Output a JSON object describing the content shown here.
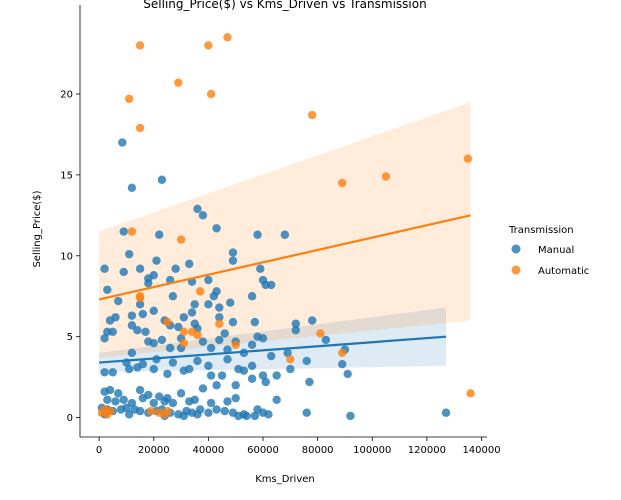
{
  "chart_data": {
    "type": "scatter",
    "title": "Selling_Price($) vs Kms_Driven vs Transmission",
    "xlabel": "Kms_Driven",
    "ylabel": "Selling_Price($)",
    "xlim": [
      -7000,
      142000
    ],
    "ylim": [
      -1.2,
      25.5
    ],
    "xticks": [
      0,
      20000,
      40000,
      60000,
      80000,
      100000,
      120000,
      140000
    ],
    "yticks": [
      0,
      5,
      10,
      15,
      20
    ],
    "grid": false,
    "legend": {
      "title": "Transmission",
      "placement": "right"
    },
    "series": [
      {
        "name": "Manual",
        "color": "#1f77b4",
        "regression": {
          "x": [
            0,
            127000
          ],
          "y": [
            3.4,
            5.0
          ],
          "ci_upper": [
            4.0,
            6.8
          ],
          "ci_lower": [
            2.8,
            3.2
          ]
        },
        "points": [
          [
            8500,
            17.0
          ],
          [
            12000,
            14.2
          ],
          [
            23000,
            14.7
          ],
          [
            36000,
            12.9
          ],
          [
            38000,
            12.5
          ],
          [
            43000,
            11.7
          ],
          [
            9000,
            11.5
          ],
          [
            22000,
            11.3
          ],
          [
            58000,
            11.3
          ],
          [
            68000,
            11.3
          ],
          [
            49000,
            10.2
          ],
          [
            11000,
            10.1
          ],
          [
            21000,
            9.7
          ],
          [
            49000,
            9.7
          ],
          [
            28000,
            9.2
          ],
          [
            33000,
            9.5
          ],
          [
            15000,
            9.2
          ],
          [
            2000,
            9.2
          ],
          [
            9000,
            9.0
          ],
          [
            59000,
            9.2
          ],
          [
            18000,
            8.6
          ],
          [
            20000,
            8.8
          ],
          [
            34000,
            8.4
          ],
          [
            40000,
            8.5
          ],
          [
            60000,
            8.5
          ],
          [
            61000,
            8.2
          ],
          [
            63000,
            8.2
          ],
          [
            3000,
            7.9
          ],
          [
            18000,
            8.3
          ],
          [
            26000,
            8.5
          ],
          [
            43000,
            7.8
          ],
          [
            42000,
            7.5
          ],
          [
            7000,
            7.2
          ],
          [
            27000,
            7.5
          ],
          [
            35000,
            7.0
          ],
          [
            40000,
            7.0
          ],
          [
            48000,
            7.1
          ],
          [
            56000,
            7.5
          ],
          [
            44000,
            6.8
          ],
          [
            15000,
            7.0
          ],
          [
            20000,
            6.6
          ],
          [
            6000,
            6.2
          ],
          [
            12000,
            6.3
          ],
          [
            16000,
            6.4
          ],
          [
            24000,
            6.0
          ],
          [
            31000,
            6.2
          ],
          [
            34000,
            6.5
          ],
          [
            44000,
            6.2
          ],
          [
            4000,
            6.0
          ],
          [
            12000,
            5.7
          ],
          [
            26000,
            5.7
          ],
          [
            29000,
            5.6
          ],
          [
            35000,
            5.8
          ],
          [
            49000,
            5.9
          ],
          [
            57000,
            5.9
          ],
          [
            72000,
            5.8
          ],
          [
            78000,
            6.0
          ],
          [
            3000,
            5.3
          ],
          [
            5000,
            5.3
          ],
          [
            14000,
            5.4
          ],
          [
            17000,
            5.3
          ],
          [
            36000,
            5.5
          ],
          [
            46000,
            5.2
          ],
          [
            58000,
            5.0
          ],
          [
            72000,
            5.4
          ],
          [
            2000,
            4.9
          ],
          [
            18000,
            4.7
          ],
          [
            23000,
            4.8
          ],
          [
            30000,
            4.9
          ],
          [
            38000,
            4.7
          ],
          [
            44000,
            4.8
          ],
          [
            50000,
            4.7
          ],
          [
            60000,
            4.9
          ],
          [
            83000,
            4.8
          ],
          [
            12000,
            4.0
          ],
          [
            20000,
            4.6
          ],
          [
            26000,
            4.3
          ],
          [
            30000,
            4.3
          ],
          [
            41000,
            4.3
          ],
          [
            47000,
            4.2
          ],
          [
            53000,
            4.0
          ],
          [
            56000,
            4.5
          ],
          [
            69000,
            4.0
          ],
          [
            90000,
            4.2
          ],
          [
            10000,
            3.4
          ],
          [
            16000,
            3.3
          ],
          [
            21000,
            3.6
          ],
          [
            27000,
            3.4
          ],
          [
            36000,
            3.5
          ],
          [
            40000,
            3.2
          ],
          [
            47000,
            3.6
          ],
          [
            56000,
            3.2
          ],
          [
            63000,
            3.8
          ],
          [
            76000,
            3.5
          ],
          [
            89000,
            3.3
          ],
          [
            2000,
            2.8
          ],
          [
            5000,
            2.8
          ],
          [
            11000,
            3.0
          ],
          [
            14000,
            3.1
          ],
          [
            20000,
            3.0
          ],
          [
            25000,
            2.7
          ],
          [
            31000,
            2.9
          ],
          [
            33000,
            3.0
          ],
          [
            41000,
            2.6
          ],
          [
            45000,
            2.6
          ],
          [
            51000,
            3.0
          ],
          [
            53000,
            2.9
          ],
          [
            60000,
            2.6
          ],
          [
            65000,
            2.6
          ],
          [
            70000,
            3.0
          ],
          [
            91000,
            2.7
          ],
          [
            2000,
            1.6
          ],
          [
            4000,
            1.7
          ],
          [
            7000,
            1.5
          ],
          [
            15000,
            1.7
          ],
          [
            18000,
            1.4
          ],
          [
            22000,
            1.3
          ],
          [
            25000,
            1.2
          ],
          [
            30000,
            1.5
          ],
          [
            38000,
            1.8
          ],
          [
            43000,
            2.0
          ],
          [
            50000,
            2.0
          ],
          [
            56000,
            2.4
          ],
          [
            61000,
            2.2
          ],
          [
            77000,
            2.2
          ],
          [
            3000,
            1.1
          ],
          [
            6000,
            1.0
          ],
          [
            9000,
            1.1
          ],
          [
            12000,
            0.9
          ],
          [
            16000,
            1.2
          ],
          [
            20000,
            0.9
          ],
          [
            24000,
            1.0
          ],
          [
            27000,
            0.9
          ],
          [
            33000,
            1.0
          ],
          [
            35000,
            1.1
          ],
          [
            41000,
            0.9
          ],
          [
            47000,
            1.0
          ],
          [
            50000,
            1.2
          ],
          [
            58000,
            0.5
          ],
          [
            65000,
            1.1
          ],
          [
            76000,
            0.3
          ],
          [
            1000,
            0.6
          ],
          [
            3000,
            0.5
          ],
          [
            5000,
            0.4
          ],
          [
            8000,
            0.5
          ],
          [
            10000,
            0.6
          ],
          [
            13000,
            0.5
          ],
          [
            15000,
            0.4
          ],
          [
            18000,
            0.3
          ],
          [
            21000,
            0.4
          ],
          [
            23000,
            0.5
          ],
          [
            26000,
            0.3
          ],
          [
            29000,
            0.2
          ],
          [
            32000,
            0.4
          ],
          [
            34000,
            0.3
          ],
          [
            37000,
            0.5
          ],
          [
            40000,
            0.3
          ],
          [
            43000,
            0.5
          ],
          [
            46000,
            0.4
          ],
          [
            49000,
            0.3
          ],
          [
            53000,
            0.2
          ],
          [
            57000,
            0.1
          ],
          [
            60000,
            0.3
          ],
          [
            62000,
            0.2
          ],
          [
            92000,
            0.1
          ],
          [
            127000,
            0.3
          ],
          [
            2000,
            0.2
          ],
          [
            11000,
            0.2
          ],
          [
            24000,
            0.1
          ],
          [
            31000,
            0.1
          ],
          [
            36000,
            0.2
          ],
          [
            51000,
            0.1
          ],
          [
            54000,
            0.1
          ]
        ]
      },
      {
        "name": "Automatic",
        "color": "#ff7f0e",
        "regression": {
          "x": [
            0,
            136000
          ],
          "y": [
            7.3,
            12.5
          ],
          "ci_upper": [
            11.5,
            19.5
          ],
          "ci_lower": [
            3.7,
            6.0
          ]
        },
        "points": [
          [
            15000,
            23.0
          ],
          [
            40000,
            23.0
          ],
          [
            47000,
            23.5
          ],
          [
            29000,
            20.7
          ],
          [
            11000,
            19.7
          ],
          [
            41000,
            20.0
          ],
          [
            15000,
            17.9
          ],
          [
            78000,
            18.7
          ],
          [
            135000,
            16.0
          ],
          [
            105000,
            14.9
          ],
          [
            89000,
            14.5
          ],
          [
            12000,
            11.5
          ],
          [
            30000,
            11.0
          ],
          [
            37000,
            7.8
          ],
          [
            15000,
            7.5
          ],
          [
            15000,
            7.4
          ],
          [
            25000,
            5.9
          ],
          [
            44000,
            5.8
          ],
          [
            31000,
            5.3
          ],
          [
            34000,
            5.3
          ],
          [
            36000,
            5.1
          ],
          [
            81000,
            5.2
          ],
          [
            31000,
            4.6
          ],
          [
            50000,
            4.5
          ],
          [
            89000,
            4.0
          ],
          [
            70000,
            3.6
          ],
          [
            136000,
            1.5
          ],
          [
            2000,
            0.5
          ],
          [
            4000,
            0.4
          ],
          [
            19000,
            0.4
          ],
          [
            22000,
            0.3
          ],
          [
            25000,
            0.4
          ],
          [
            1000,
            0.3
          ],
          [
            3000,
            0.2
          ],
          [
            24000,
            0.2
          ]
        ]
      }
    ]
  }
}
